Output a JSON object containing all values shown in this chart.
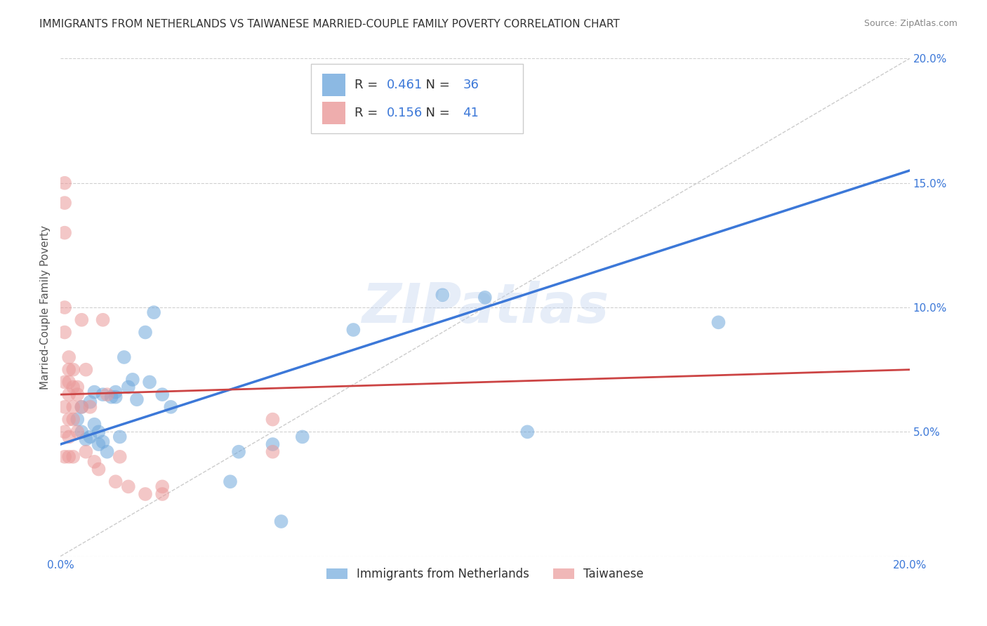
{
  "title": "IMMIGRANTS FROM NETHERLANDS VS TAIWANESE MARRIED-COUPLE FAMILY POVERTY CORRELATION CHART",
  "source": "Source: ZipAtlas.com",
  "ylabel": "Married-Couple Family Poverty",
  "xlim": [
    0.0,
    0.2
  ],
  "ylim": [
    0.0,
    0.2
  ],
  "xticks": [
    0.0,
    0.04,
    0.08,
    0.12,
    0.16,
    0.2
  ],
  "yticks": [
    0.0,
    0.05,
    0.1,
    0.15,
    0.2
  ],
  "xticklabels": [
    "0.0%",
    "",
    "",
    "",
    "",
    "20.0%"
  ],
  "yticklabels": [
    "",
    "5.0%",
    "10.0%",
    "15.0%",
    "20.0%"
  ],
  "legend1_label": "Immigrants from Netherlands",
  "legend2_label": "Taiwanese",
  "r1": 0.461,
  "n1": 36,
  "r2": 0.156,
  "n2": 41,
  "color1": "#6fa8dc",
  "color2": "#ea9999",
  "line1_color": "#3c78d8",
  "line2_color": "#cc4444",
  "watermark": "ZIPatlas",
  "blue_points_x": [
    0.004,
    0.005,
    0.005,
    0.006,
    0.007,
    0.007,
    0.008,
    0.008,
    0.009,
    0.009,
    0.01,
    0.01,
    0.011,
    0.012,
    0.013,
    0.013,
    0.014,
    0.015,
    0.016,
    0.017,
    0.018,
    0.02,
    0.021,
    0.022,
    0.024,
    0.026,
    0.04,
    0.042,
    0.05,
    0.052,
    0.057,
    0.069,
    0.09,
    0.1,
    0.11,
    0.155
  ],
  "blue_points_y": [
    0.055,
    0.05,
    0.06,
    0.047,
    0.048,
    0.062,
    0.053,
    0.066,
    0.045,
    0.05,
    0.046,
    0.065,
    0.042,
    0.064,
    0.064,
    0.066,
    0.048,
    0.08,
    0.068,
    0.071,
    0.063,
    0.09,
    0.07,
    0.098,
    0.065,
    0.06,
    0.03,
    0.042,
    0.045,
    0.014,
    0.048,
    0.091,
    0.105,
    0.104,
    0.05,
    0.094
  ],
  "pink_points_x": [
    0.001,
    0.001,
    0.001,
    0.001,
    0.001,
    0.001,
    0.001,
    0.001,
    0.001,
    0.002,
    0.002,
    0.002,
    0.002,
    0.002,
    0.002,
    0.002,
    0.003,
    0.003,
    0.003,
    0.003,
    0.003,
    0.004,
    0.004,
    0.004,
    0.005,
    0.005,
    0.006,
    0.006,
    0.007,
    0.008,
    0.009,
    0.01,
    0.011,
    0.013,
    0.014,
    0.016,
    0.02,
    0.024,
    0.024,
    0.05,
    0.05
  ],
  "pink_points_y": [
    0.15,
    0.142,
    0.13,
    0.1,
    0.09,
    0.07,
    0.06,
    0.05,
    0.04,
    0.08,
    0.075,
    0.07,
    0.065,
    0.055,
    0.048,
    0.04,
    0.075,
    0.068,
    0.06,
    0.055,
    0.04,
    0.068,
    0.065,
    0.05,
    0.095,
    0.06,
    0.075,
    0.042,
    0.06,
    0.038,
    0.035,
    0.095,
    0.065,
    0.03,
    0.04,
    0.028,
    0.025,
    0.028,
    0.025,
    0.055,
    0.042
  ],
  "background_color": "#ffffff",
  "grid_color": "#d0d0d0",
  "title_fontsize": 11,
  "axis_label_fontsize": 11,
  "tick_fontsize": 11
}
